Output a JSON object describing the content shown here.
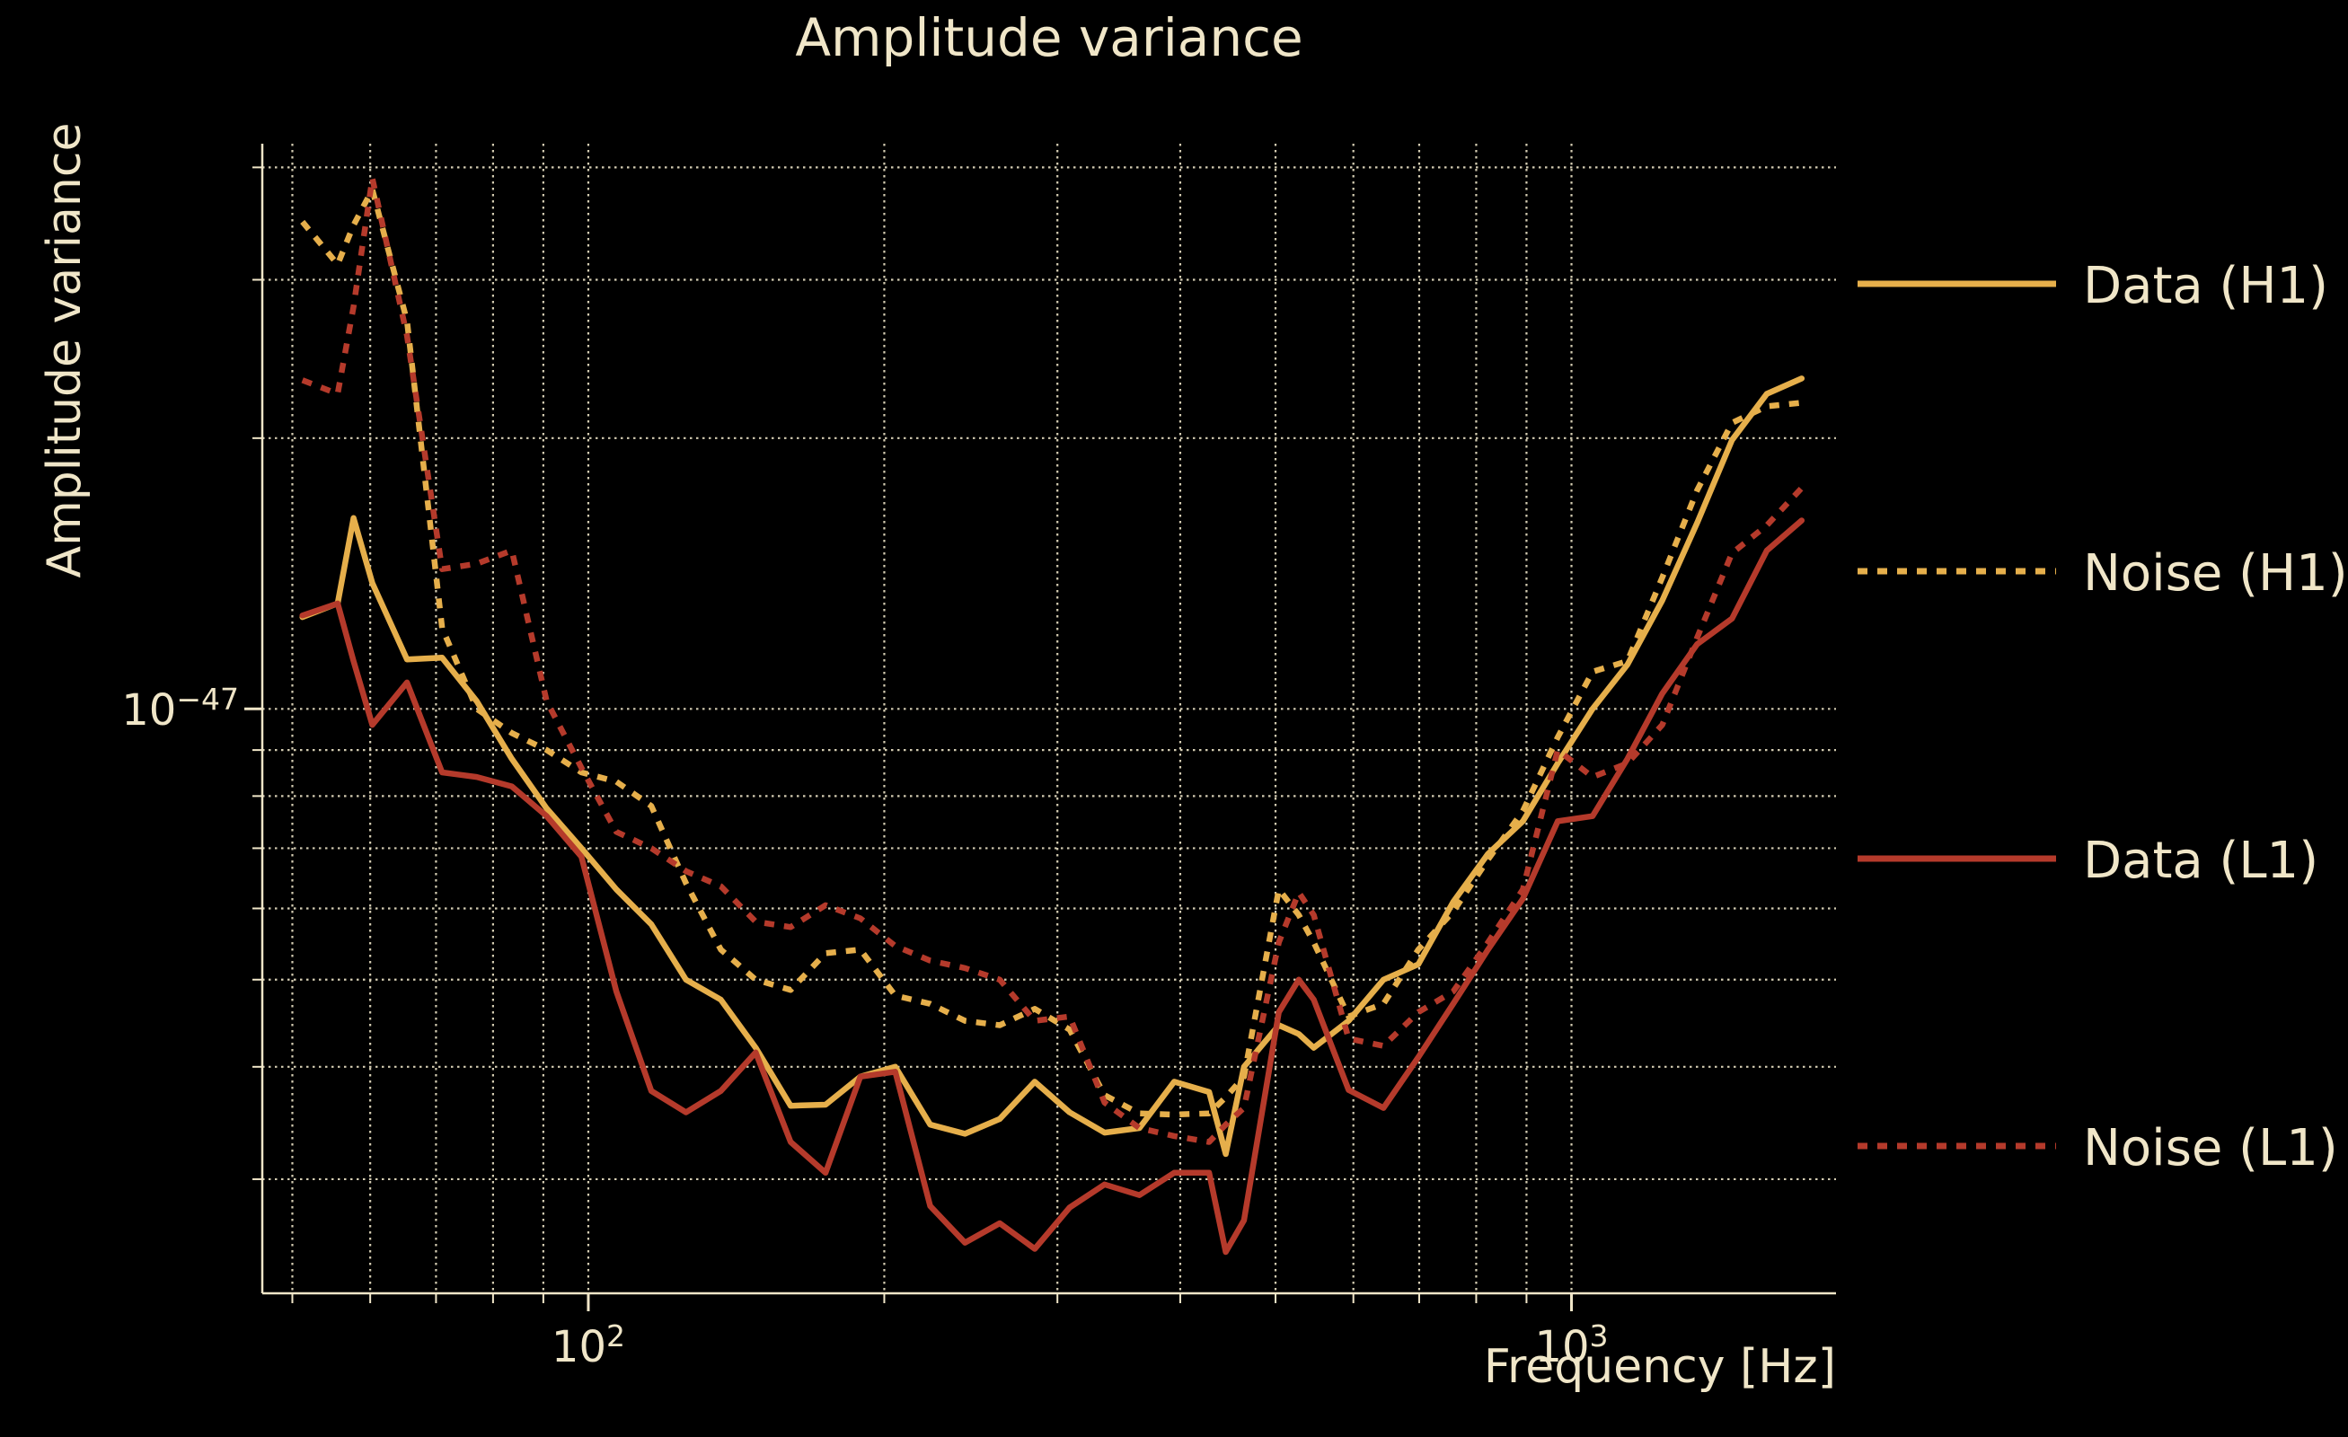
{
  "title": "Amplitude variance",
  "x_axis": {
    "label": "Frequency [Hz]",
    "ticks": [
      {
        "f": 100,
        "base": "10",
        "sup": "2"
      },
      {
        "f": 1000,
        "base": "10",
        "sup": "3"
      }
    ]
  },
  "y_axis": {
    "label": "Amplitude variance",
    "ticks": [
      {
        "v_1e48": 10,
        "base": "10",
        "sup": "−47"
      }
    ]
  },
  "legend": {
    "items": [
      {
        "label": "Data (H1)"
      },
      {
        "label": "Noise (H1)"
      },
      {
        "label": "Data (L1)"
      },
      {
        "label": "Noise (L1)"
      }
    ]
  },
  "colors": {
    "background": "#000000",
    "text": "#F0E6C8",
    "grid": "#EBE3C6",
    "spine": "#F0E6C8",
    "h1": "#E6AF4B",
    "l1": "#B53A2B"
  },
  "chart_data": {
    "type": "line",
    "title": "Amplitude variance",
    "xlabel": "Frequency [Hz]",
    "ylabel": "Amplitude variance",
    "x_scale": "log",
    "y_scale": "log",
    "legend_position": "right-outside",
    "grid": "both-dotted",
    "value_unit": 1e-48,
    "xlim": [
      46.6,
      1858
    ],
    "ylim_1e48": [
      2.24,
      42.5
    ],
    "x_gridlines": [
      50,
      60,
      70,
      80,
      90,
      100,
      200,
      300,
      400,
      500,
      600,
      700,
      800,
      900,
      1000
    ],
    "x_major_ticks": [
      100,
      1000
    ],
    "y_gridlines_1e48": [
      3,
      4,
      5,
      6,
      7,
      8,
      9,
      10,
      20,
      30,
      40
    ],
    "y_major_ticks_1e48": [
      10
    ],
    "x": [
      51.2,
      55.6,
      57.7,
      60.3,
      65.4,
      71,
      77,
      83.6,
      90.7,
      98.4,
      106.8,
      115.9,
      125.7,
      136.4,
      148,
      160.6,
      174.3,
      189.1,
      205.2,
      222.7,
      241.6,
      262.1,
      284.5,
      308.7,
      335,
      363.5,
      394.4,
      428,
      445,
      464.4,
      503.9,
      528,
      546.8,
      593.3,
      643.8,
      698.6,
      758,
      822.5,
      892.4,
      968.3,
      1050.7,
      1140,
      1237,
      1342.2,
      1456.4,
      1580.3,
      1714.7
    ],
    "series": [
      {
        "name": "Data (H1)",
        "detector": "H1",
        "color": "#E6AF4B",
        "linestyle": "solid",
        "values_1e48": [
          12.65,
          13.1,
          16.3,
          13.8,
          11.35,
          11.4,
          10.2,
          8.8,
          7.75,
          7.0,
          6.3,
          5.76,
          5.0,
          4.75,
          4.2,
          3.62,
          3.63,
          3.9,
          4.0,
          3.45,
          3.37,
          3.5,
          3.85,
          3.56,
          3.38,
          3.42,
          3.85,
          3.75,
          3.2,
          4.0,
          4.45,
          4.35,
          4.2,
          4.5,
          5.0,
          5.2,
          6.1,
          6.9,
          7.5,
          8.7,
          10.0,
          11.2,
          13.2,
          16.1,
          19.9,
          22.4,
          23.3
        ]
      },
      {
        "name": "Noise (H1)",
        "detector": "H1",
        "color": "#E6AF4B",
        "linestyle": "dotted",
        "values_1e48": [
          34.8,
          31.2,
          34.5,
          37.8,
          27.0,
          12.3,
          10.0,
          9.4,
          9.0,
          8.5,
          8.3,
          7.8,
          6.4,
          5.4,
          5.0,
          4.87,
          5.35,
          5.4,
          4.8,
          4.7,
          4.5,
          4.45,
          4.64,
          4.4,
          3.72,
          3.55,
          3.54,
          3.55,
          3.7,
          3.9,
          6.3,
          5.9,
          5.5,
          4.55,
          4.7,
          5.4,
          5.95,
          6.8,
          7.7,
          9.3,
          11.0,
          11.3,
          14.0,
          17.5,
          20.8,
          21.7,
          21.9
        ]
      },
      {
        "name": "Data (L1)",
        "detector": "L1",
        "color": "#B53A2B",
        "linestyle": "solid",
        "values_1e48": [
          12.7,
          13.1,
          11.3,
          9.6,
          10.7,
          8.5,
          8.4,
          8.2,
          7.6,
          6.85,
          4.85,
          3.76,
          3.56,
          3.76,
          4.15,
          3.3,
          3.05,
          3.9,
          3.95,
          2.8,
          2.55,
          2.68,
          2.51,
          2.79,
          2.96,
          2.88,
          3.05,
          3.05,
          2.49,
          2.7,
          4.6,
          5.0,
          4.75,
          3.77,
          3.6,
          4.1,
          4.7,
          5.4,
          6.15,
          7.5,
          7.6,
          8.8,
          10.4,
          11.8,
          12.6,
          15.0,
          16.2
        ]
      },
      {
        "name": "Noise (L1)",
        "detector": "L1",
        "color": "#B53A2B",
        "linestyle": "dotted",
        "values_1e48": [
          23.2,
          22.4,
          28.0,
          38.9,
          26.0,
          14.3,
          14.5,
          15.0,
          10.2,
          8.6,
          7.3,
          7.0,
          6.6,
          6.35,
          5.8,
          5.72,
          6.05,
          5.85,
          5.45,
          5.25,
          5.15,
          5.0,
          4.5,
          4.55,
          3.65,
          3.42,
          3.35,
          3.3,
          3.45,
          3.6,
          5.5,
          6.25,
          5.9,
          4.3,
          4.22,
          4.6,
          4.85,
          5.5,
          6.3,
          9.0,
          8.4,
          8.7,
          9.6,
          12.0,
          14.9,
          16.0,
          17.6
        ]
      }
    ]
  }
}
